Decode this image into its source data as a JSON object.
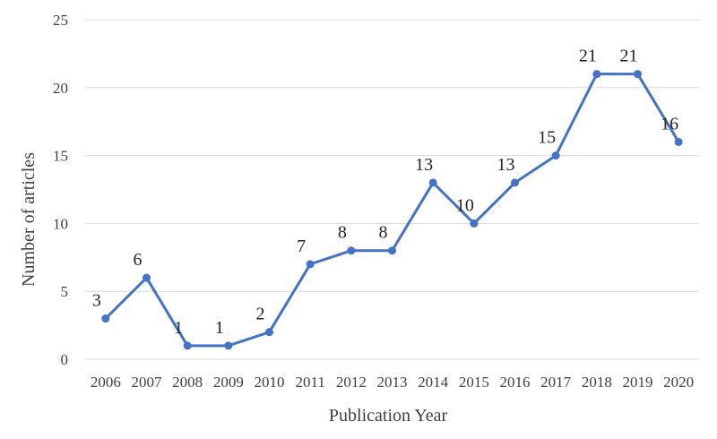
{
  "chart_data": {
    "type": "line",
    "title": "",
    "xlabel": "Publication Year",
    "ylabel": "Number of articles",
    "categories": [
      "2006",
      "2007",
      "2008",
      "2009",
      "2010",
      "2011",
      "2012",
      "2013",
      "2014",
      "2015",
      "2016",
      "2017",
      "2018",
      "2019",
      "2020"
    ],
    "series": [
      {
        "values": [
          3,
          6,
          1,
          1,
          2,
          7,
          8,
          8,
          13,
          10,
          13,
          15,
          21,
          21,
          16
        ]
      }
    ],
    "ylim": [
      0,
      25
    ],
    "yticks": [
      "0",
      "5",
      "10",
      "15",
      "20",
      "25"
    ],
    "grid": "horizontal",
    "data_labels": true,
    "legend": "none",
    "colors": {
      "series": "#4472c4",
      "grid": "#d9d9d9",
      "text": "#404040"
    }
  }
}
